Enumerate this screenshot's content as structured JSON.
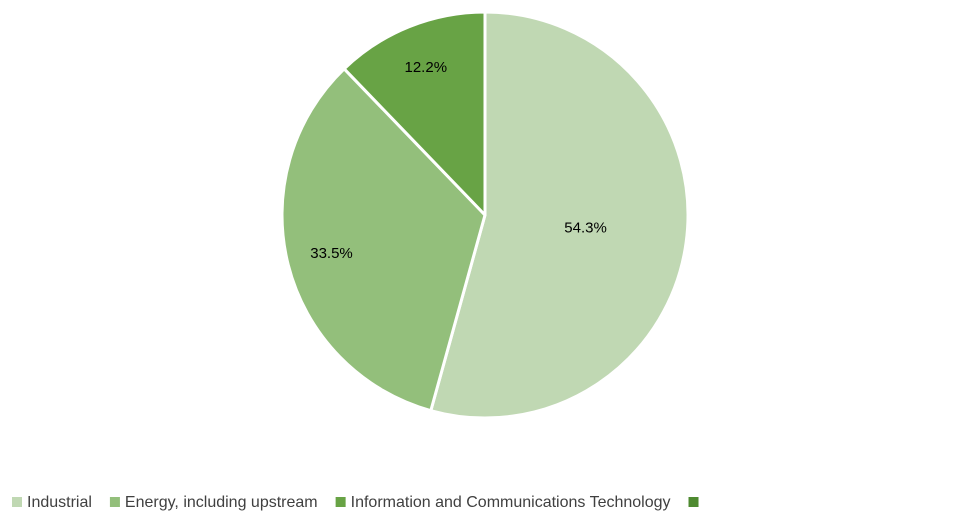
{
  "chart_data": {
    "type": "pie",
    "categories": [
      "Industrial",
      "Energy, including upstream",
      "Information and Communications Technology",
      null
    ],
    "values": [
      54.3,
      33.5,
      12.2,
      0
    ],
    "value_labels": [
      "54.3%",
      "33.5%",
      "12.2%",
      null
    ],
    "colors": [
      "#c0d8b3",
      "#93bf7b",
      "#68a345",
      "#4e8a30"
    ],
    "legend": "bottom"
  }
}
